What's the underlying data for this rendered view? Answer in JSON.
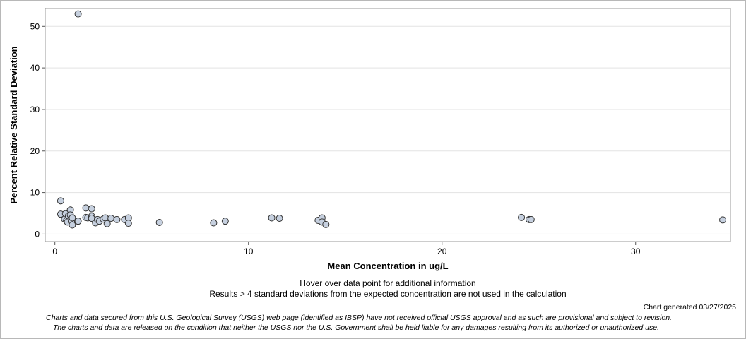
{
  "chart_data": {
    "type": "scatter",
    "xlabel": "Mean Concentration in ug/L",
    "ylabel": "Percent Relative Standard Deviation",
    "xlim": [
      -0.5,
      34.9
    ],
    "ylim": [
      -1.8,
      54.3
    ],
    "xticks": [
      0,
      10,
      20,
      30
    ],
    "yticks": [
      0,
      10,
      20,
      30,
      40,
      50
    ],
    "grid": true,
    "marker_fill": "#c6d0df",
    "marker_stroke": "#333333",
    "points": [
      {
        "x": 1.2,
        "y": 53.0
      },
      {
        "x": 0.3,
        "y": 8.0
      },
      {
        "x": 0.3,
        "y": 4.8
      },
      {
        "x": 0.5,
        "y": 3.6
      },
      {
        "x": 0.55,
        "y": 4.9
      },
      {
        "x": 0.6,
        "y": 3.2
      },
      {
        "x": 0.65,
        "y": 2.9
      },
      {
        "x": 0.7,
        "y": 4.4
      },
      {
        "x": 0.8,
        "y": 5.8
      },
      {
        "x": 0.8,
        "y": 4.6
      },
      {
        "x": 0.85,
        "y": 3.0
      },
      {
        "x": 0.9,
        "y": 2.2
      },
      {
        "x": 0.9,
        "y": 3.9
      },
      {
        "x": 1.2,
        "y": 3.1
      },
      {
        "x": 1.6,
        "y": 6.3
      },
      {
        "x": 1.6,
        "y": 4.0
      },
      {
        "x": 1.7,
        "y": 3.9
      },
      {
        "x": 1.9,
        "y": 4.3
      },
      {
        "x": 1.9,
        "y": 6.1
      },
      {
        "x": 1.9,
        "y": 3.8
      },
      {
        "x": 2.1,
        "y": 2.7
      },
      {
        "x": 2.2,
        "y": 3.5
      },
      {
        "x": 2.3,
        "y": 3.1
      },
      {
        "x": 2.5,
        "y": 3.6
      },
      {
        "x": 2.6,
        "y": 3.9
      },
      {
        "x": 2.7,
        "y": 2.5
      },
      {
        "x": 2.9,
        "y": 3.8
      },
      {
        "x": 3.2,
        "y": 3.5
      },
      {
        "x": 3.6,
        "y": 3.5
      },
      {
        "x": 3.8,
        "y": 3.9
      },
      {
        "x": 3.8,
        "y": 2.6
      },
      {
        "x": 5.4,
        "y": 2.8
      },
      {
        "x": 8.2,
        "y": 2.7
      },
      {
        "x": 8.8,
        "y": 3.1
      },
      {
        "x": 11.2,
        "y": 3.9
      },
      {
        "x": 11.6,
        "y": 3.8
      },
      {
        "x": 13.6,
        "y": 3.3
      },
      {
        "x": 13.8,
        "y": 3.9
      },
      {
        "x": 13.8,
        "y": 2.9
      },
      {
        "x": 14.0,
        "y": 2.3
      },
      {
        "x": 24.1,
        "y": 4.0
      },
      {
        "x": 24.5,
        "y": 3.5
      },
      {
        "x": 24.6,
        "y": 3.5
      },
      {
        "x": 34.5,
        "y": 3.4
      }
    ]
  },
  "notes": {
    "hover": "Hover over data point for additional information",
    "results": "Results > 4 standard deviations from the expected concentration are not used in the calculation",
    "generated": "Chart generated 03/27/2025",
    "disclaimer1": "Charts and data secured from this U.S. Geological Survey (USGS) web page (identified as IBSP) have not received official USGS approval and as such are provisional and subject to revision.",
    "disclaimer2": "The charts and data are released on the condition that neither the USGS nor the U.S. Government shall be held liable for any damages resulting from its authorized or unauthorized use."
  }
}
